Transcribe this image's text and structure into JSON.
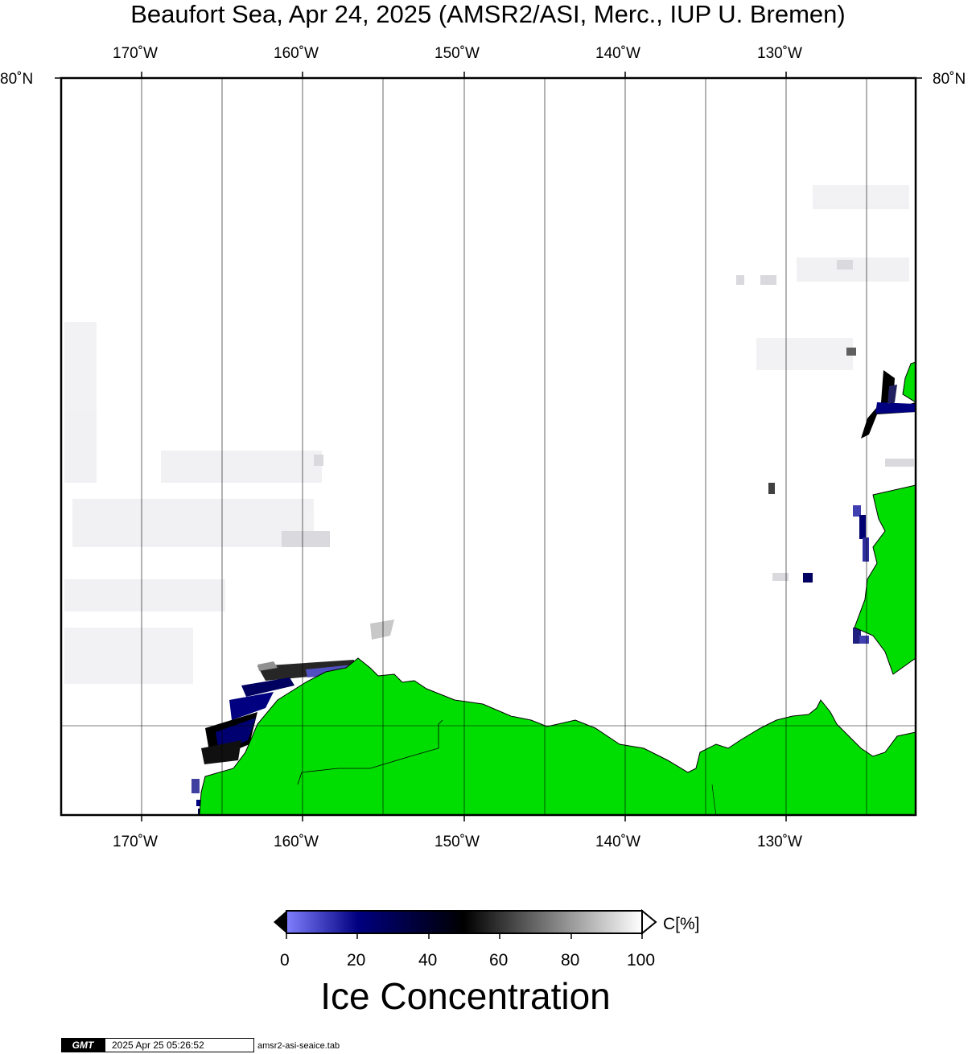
{
  "title": "Beaufort Sea, Apr 24, 2025 (AMSR2/ASI, Merc., IUP U. Bremen)",
  "longitudes": [
    "170˚W",
    "160˚W",
    "150˚W",
    "140˚W",
    "130˚W"
  ],
  "latitude_label": "80˚N",
  "colorbar": {
    "label": "C[%]",
    "ticks": [
      "0",
      "20",
      "40",
      "60",
      "80",
      "100"
    ],
    "stops": [
      {
        "value": 0,
        "color": "#8080ff"
      },
      {
        "value": 20,
        "color": "#000080"
      },
      {
        "value": 50,
        "color": "#000000"
      },
      {
        "value": 100,
        "color": "#ffffff"
      }
    ]
  },
  "legend_title": "Ice Concentration",
  "footer": {
    "logo": "GMT",
    "timestamp": "2025 Apr 25 05:26:52",
    "filename": "amsr2-asi-seaice.tab"
  },
  "colors": {
    "land": "#00dd00",
    "gridline": "#000000",
    "open_water": "#ffffff"
  }
}
